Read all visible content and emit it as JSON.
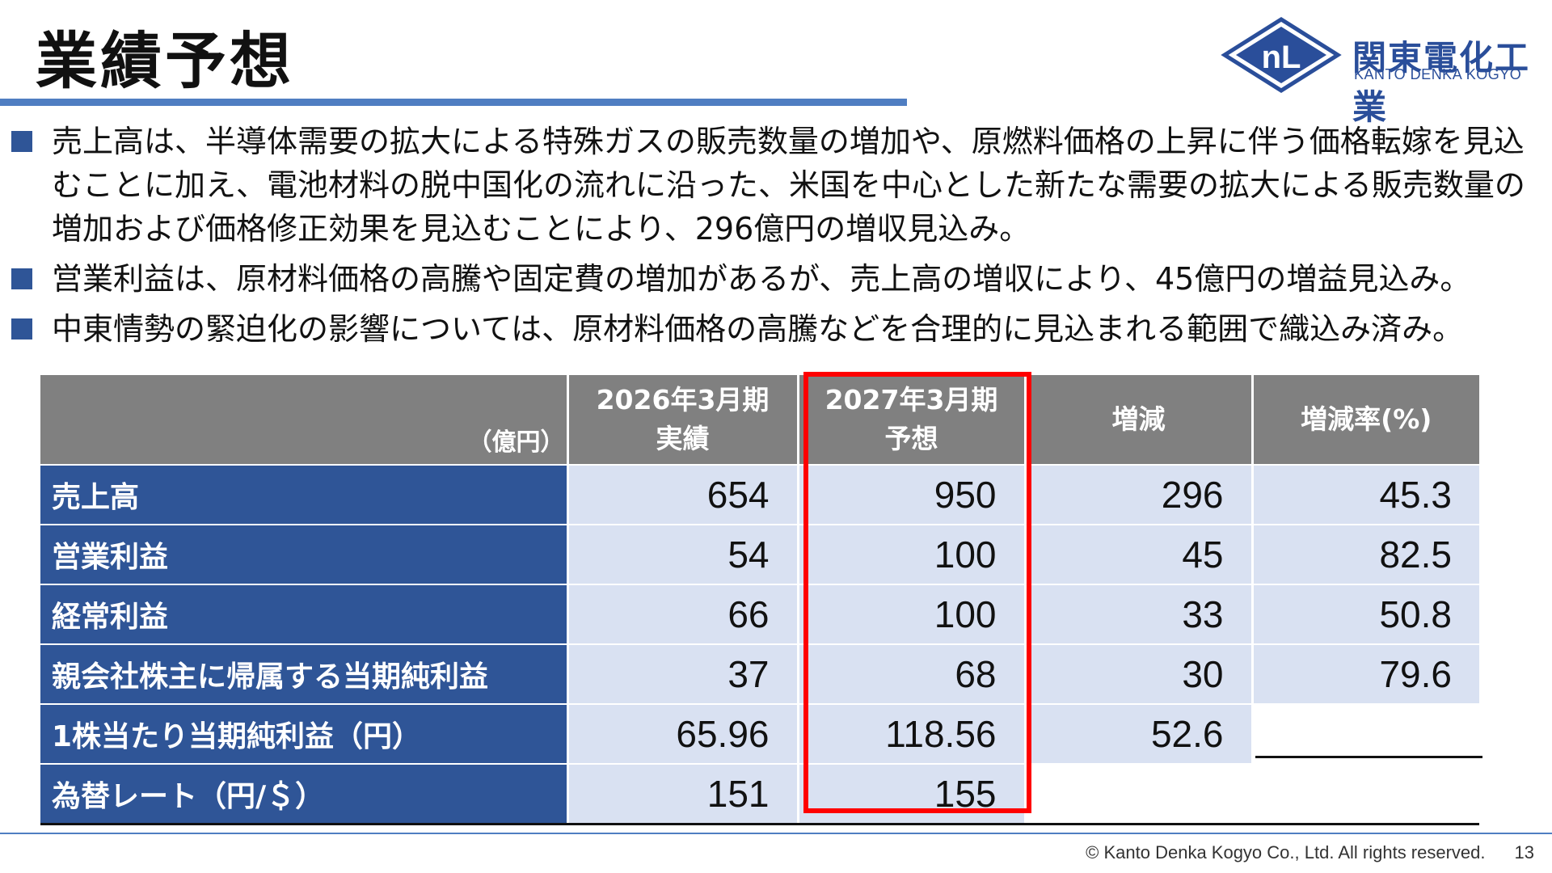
{
  "header": {
    "title": "業績予想",
    "logo": {
      "jp": "関東電化工業",
      "en": "KANTO DENKA KOGYO",
      "colors": {
        "brand": "#2a4e9a"
      }
    }
  },
  "bullets": [
    "売上高は、半導体需要の拡大による特殊ガスの販売数量の増加や、原燃料価格の上昇に伴う価格転嫁を見込むことに加え、電池材料の脱中国化の流れに沿った、米国を中心とした新たな需要の拡大による販売数量の増加および価格修正効果を見込むことにより、296億円の増収見込み。",
    "営業利益は、原材料価格の高騰や固定費の増加があるが、売上高の増収により、45億円の増益見込み。",
    "中東情勢の緊迫化の影響については、原材料価格の高騰などを合理的に見込まれる範囲で織込み済み。"
  ],
  "table": {
    "unit": "（億円）",
    "headers": [
      {
        "line1": "2026年3月期",
        "line2": "実績"
      },
      {
        "line1": "2027年3月期",
        "line2": "予想"
      },
      {
        "line1": "増減",
        "line2": ""
      },
      {
        "line1": "増減率(%)",
        "line2": ""
      }
    ],
    "rows": [
      {
        "label": "売上高",
        "values": [
          "654",
          "950",
          "296",
          "45.3"
        ]
      },
      {
        "label": "営業利益",
        "values": [
          "54",
          "100",
          "45",
          "82.5"
        ]
      },
      {
        "label": "経常利益",
        "values": [
          "66",
          "100",
          "33",
          "50.8"
        ]
      },
      {
        "label": "親会社株主に帰属する当期純利益",
        "values": [
          "37",
          "68",
          "30",
          "79.6"
        ]
      },
      {
        "label": "1株当たり当期純利益（円）",
        "values": [
          "65.96",
          "118.56",
          "52.6",
          ""
        ]
      },
      {
        "label": "為替レート（円/＄）",
        "values": [
          "151",
          "155",
          "",
          ""
        ]
      }
    ],
    "colors": {
      "header_bg": "#808080",
      "label_bg": "#2f5597",
      "cell_bg": "#d9e1f2",
      "highlight": "#ff0000"
    }
  },
  "footer": {
    "copyright": "© Kanto Denka Kogyo Co., Ltd. All rights reserved.",
    "page": "13"
  }
}
